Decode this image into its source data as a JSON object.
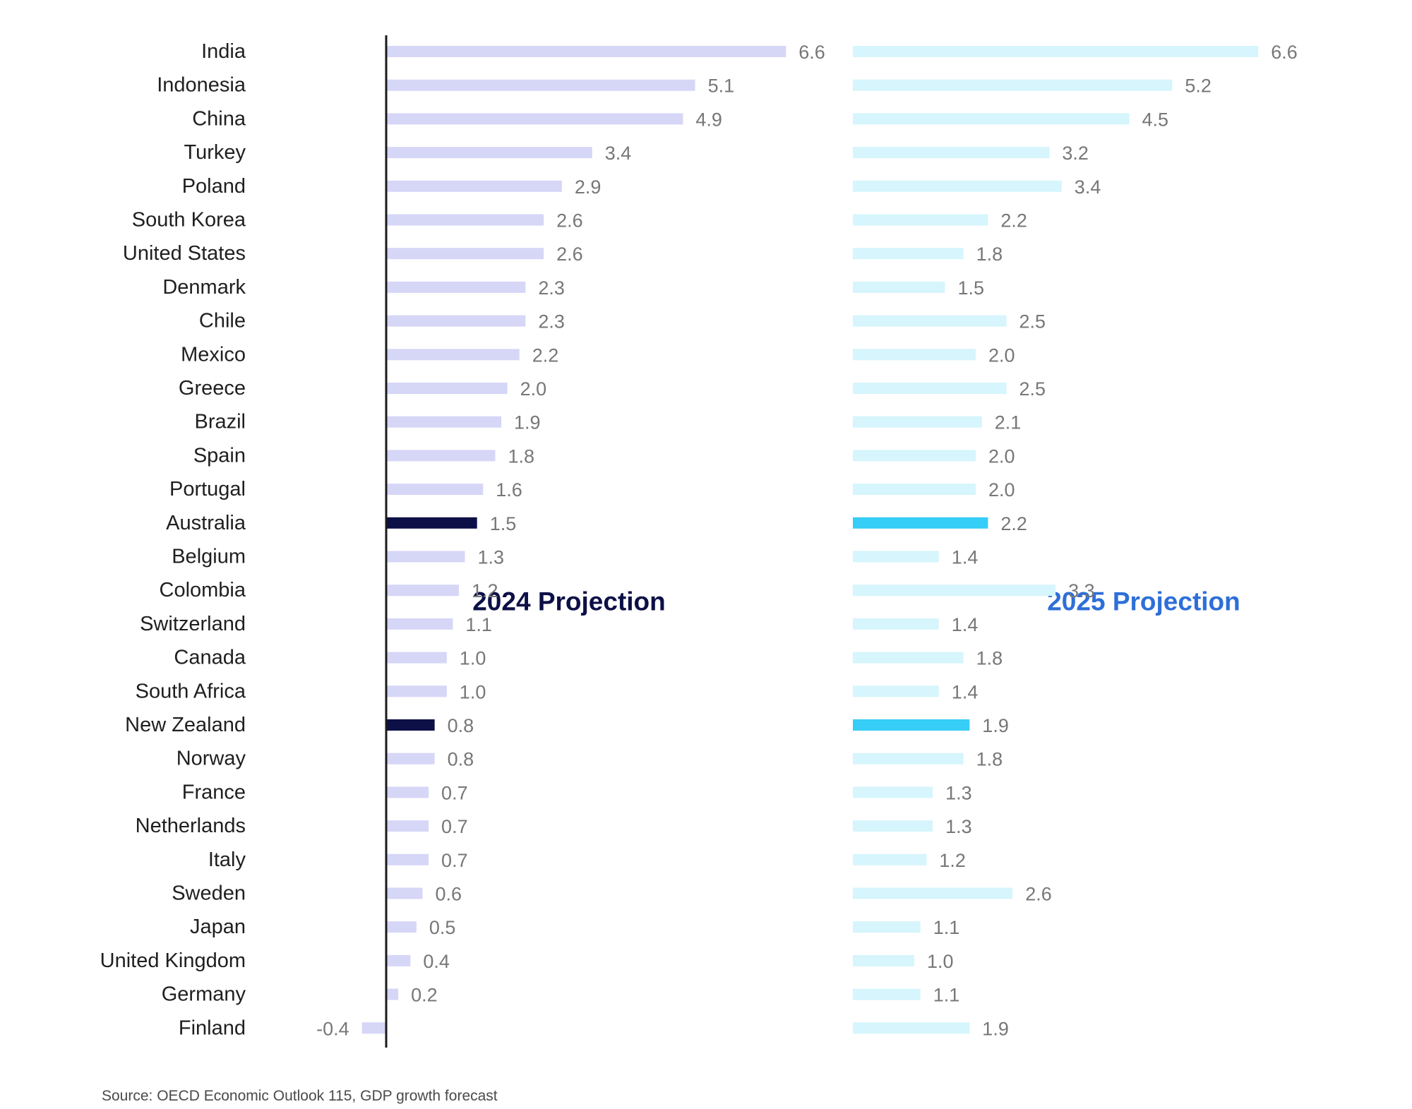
{
  "chart_data": {
    "type": "bar",
    "orientation": "horizontal",
    "categories": [
      "India",
      "Indonesia",
      "China",
      "Turkey",
      "Poland",
      "South Korea",
      "United States",
      "Denmark",
      "Chile",
      "Mexico",
      "Greece",
      "Brazil",
      "Spain",
      "Portugal",
      "Australia",
      "Belgium",
      "Colombia",
      "Switzerland",
      "Canada",
      "South Africa",
      "New Zealand",
      "Norway",
      "France",
      "Netherlands",
      "Italy",
      "Sweden",
      "Japan",
      "United Kingdom",
      "Germany",
      "Finland"
    ],
    "highlighted_categories": [
      "Australia",
      "New Zealand"
    ],
    "series": [
      {
        "name": "2024 Projection",
        "values": [
          6.6,
          5.1,
          4.9,
          3.4,
          2.9,
          2.6,
          2.6,
          2.3,
          2.3,
          2.2,
          2.0,
          1.9,
          1.8,
          1.6,
          1.5,
          1.3,
          1.2,
          1.1,
          1.0,
          1.0,
          0.8,
          0.8,
          0.7,
          0.7,
          0.7,
          0.6,
          0.5,
          0.4,
          0.2,
          -0.4
        ],
        "value_labels": [
          "6.6",
          "5.1",
          "4.9",
          "3.4",
          "2.9",
          "2.6",
          "2.6",
          "2.3",
          "2.3",
          "2.2",
          "2.0",
          "1.9",
          "1.8",
          "1.6",
          "1.5",
          "1.3",
          "1.2",
          "1.1",
          "1.0",
          "1.0",
          "0.8",
          "0.8",
          "0.7",
          "0.7",
          "0.7",
          "0.6",
          "0.5",
          "0.4",
          "0.2",
          "-0.4"
        ],
        "color": "#d6d6f7",
        "highlight_color": "#0d1046",
        "title_color": "#0d1046"
      },
      {
        "name": "2025 Projection",
        "values": [
          6.6,
          5.2,
          4.5,
          3.2,
          3.4,
          2.2,
          1.8,
          1.5,
          2.5,
          2.0,
          2.5,
          2.1,
          2.0,
          2.0,
          2.2,
          1.4,
          3.3,
          1.4,
          1.8,
          1.4,
          1.9,
          1.8,
          1.3,
          1.3,
          1.2,
          2.6,
          1.1,
          1.0,
          1.1,
          1.9
        ],
        "value_labels": [
          "6.6",
          "5.2",
          "4.5",
          "3.2",
          "3.4",
          "2.2",
          "1.8",
          "1.5",
          "2.5",
          "2.0",
          "2.5",
          "2.1",
          "2.0",
          "2.0",
          "2.2",
          "1.4",
          "3.3",
          "1.4",
          "1.8",
          "1.4",
          "1.9",
          "1.8",
          "1.3",
          "1.3",
          "1.2",
          "2.6",
          "1.1",
          "1.0",
          "1.1",
          "1.9"
        ],
        "color": "#d6f5fc",
        "highlight_color": "#36cdf6",
        "title_color": "#2e6fd8"
      }
    ],
    "xlim": [
      -0.4,
      6.6
    ],
    "grid": false,
    "source": "Source: OECD Economic Outlook 115, GDP growth forecast"
  }
}
